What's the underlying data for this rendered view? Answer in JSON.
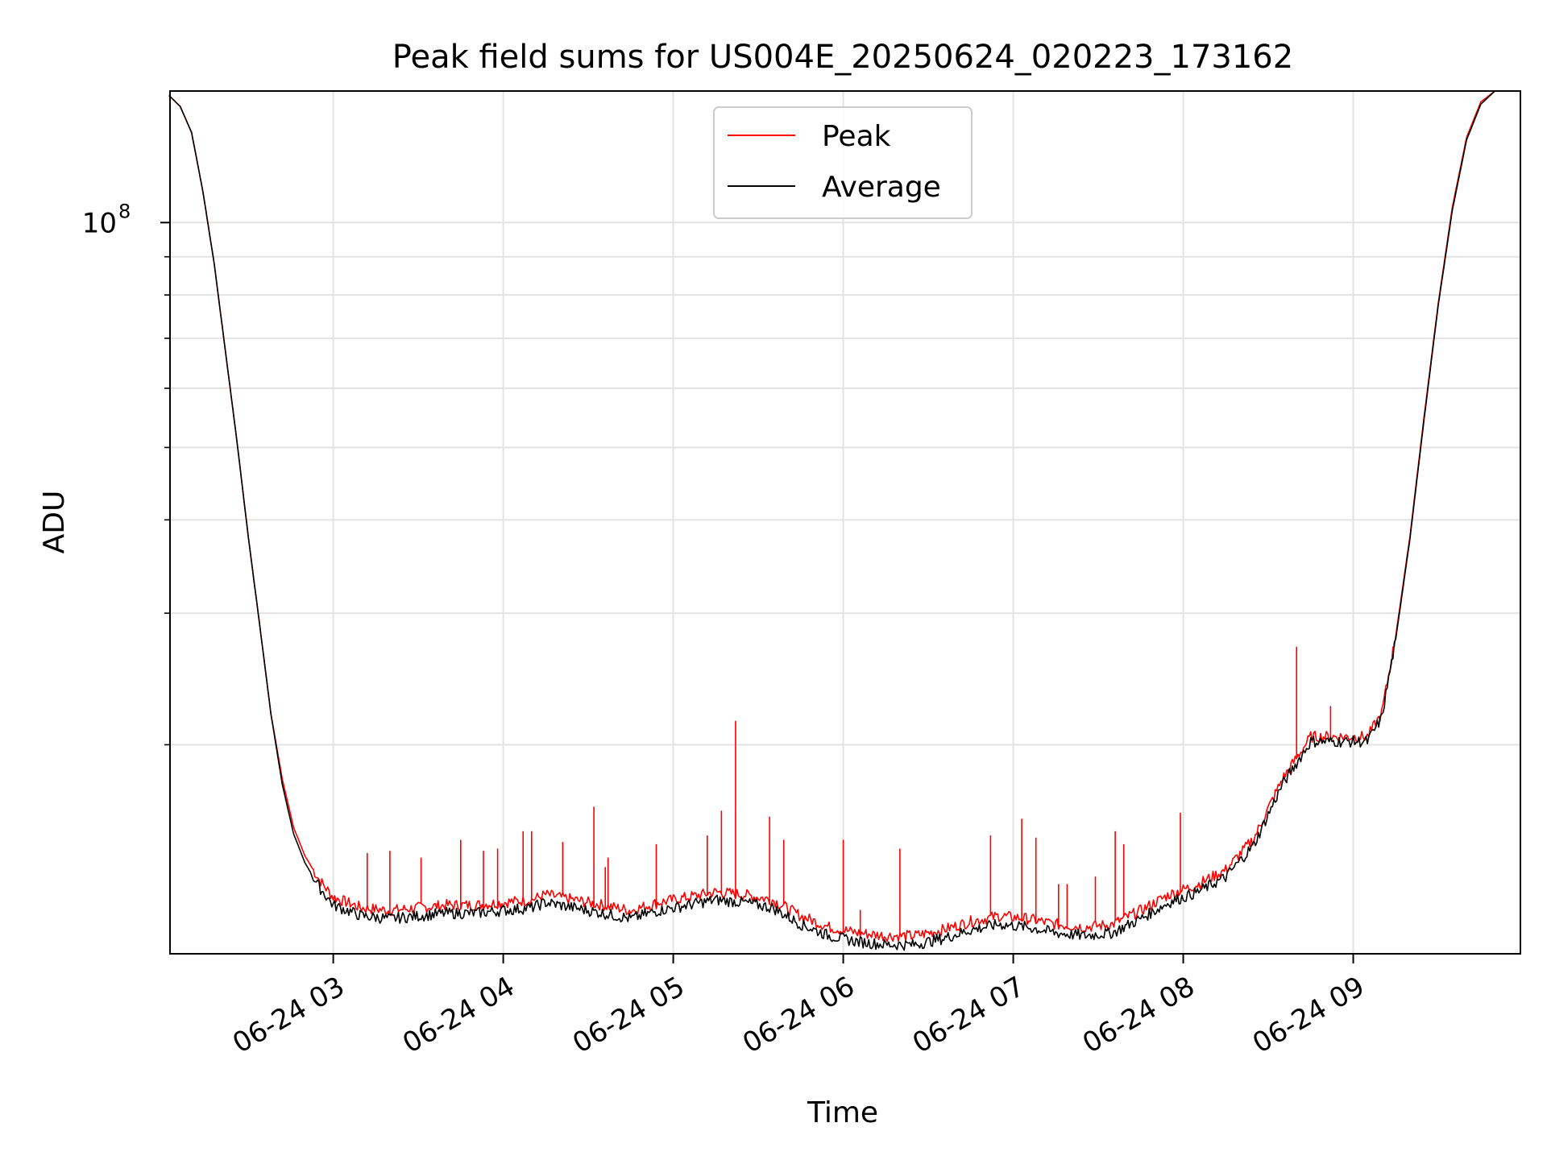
{
  "chart_data": {
    "type": "line",
    "title": "Peak field sums for US004E_20250624_020223_173162",
    "xlabel": "Time",
    "ylabel": "ADU",
    "y_scale": "log",
    "ylim": [
      10500000,
      150000000
    ],
    "x_unit": "datetime",
    "xlim": [
      "2025-06-24 02:02:23",
      "2025-06-24 09:59:00"
    ],
    "x_ticks": [
      {
        "at": "2025-06-24 03:00",
        "label": "06-24 03"
      },
      {
        "at": "2025-06-24 04:00",
        "label": "06-24 04"
      },
      {
        "at": "2025-06-24 05:00",
        "label": "06-24 05"
      },
      {
        "at": "2025-06-24 06:00",
        "label": "06-24 06"
      },
      {
        "at": "2025-06-24 07:00",
        "label": "06-24 07"
      },
      {
        "at": "2025-06-24 08:00",
        "label": "06-24 08"
      },
      {
        "at": "2025-06-24 09:00",
        "label": "06-24 09"
      }
    ],
    "y_major_ticks": [
      {
        "value": 100000000,
        "base": "10",
        "exponent": "8"
      }
    ],
    "y_minor_ticks": [
      20000000,
      30000000,
      40000000,
      50000000,
      60000000,
      70000000,
      80000000,
      90000000
    ],
    "grid": true,
    "legend_position": "upper-center",
    "series": [
      {
        "name": "Peak",
        "color": "#ff0000",
        "points": [
          [
            "2025-06-24 02:02",
            148000000
          ],
          [
            "2025-06-24 02:06",
            143000000
          ],
          [
            "2025-06-24 02:10",
            132000000
          ],
          [
            "2025-06-24 02:14",
            110000000
          ],
          [
            "2025-06-24 02:18",
            88000000
          ],
          [
            "2025-06-24 02:22",
            67000000
          ],
          [
            "2025-06-24 02:26",
            51000000
          ],
          [
            "2025-06-24 02:30",
            38000000
          ],
          [
            "2025-06-24 02:34",
            29000000
          ],
          [
            "2025-06-24 02:38",
            22000000
          ],
          [
            "2025-06-24 02:42",
            18000000
          ],
          [
            "2025-06-24 02:46",
            15500000
          ],
          [
            "2025-06-24 02:50",
            14200000
          ],
          [
            "2025-06-24 02:55",
            13200000
          ],
          [
            "2025-06-24 03:00",
            12500000
          ],
          [
            "2025-06-24 03:10",
            12100000
          ],
          [
            "2025-06-24 03:20",
            12000000
          ],
          [
            "2025-06-24 03:30",
            12100000
          ],
          [
            "2025-06-24 03:40",
            12200000
          ],
          [
            "2025-06-24 03:50",
            12200000
          ],
          [
            "2025-06-24 04:00",
            12300000
          ],
          [
            "2025-06-24 04:10",
            12400000
          ],
          [
            "2025-06-24 04:15",
            12600000
          ],
          [
            "2025-06-24 04:25",
            12400000
          ],
          [
            "2025-06-24 04:35",
            12200000
          ],
          [
            "2025-06-24 04:45",
            12000000
          ],
          [
            "2025-06-24 04:55",
            12300000
          ],
          [
            "2025-06-24 05:05",
            12500000
          ],
          [
            "2025-06-24 05:15",
            12700000
          ],
          [
            "2025-06-24 05:25",
            12600000
          ],
          [
            "2025-06-24 05:35",
            12400000
          ],
          [
            "2025-06-24 05:45",
            11800000
          ],
          [
            "2025-06-24 05:55",
            11400000
          ],
          [
            "2025-06-24 06:05",
            11200000
          ],
          [
            "2025-06-24 06:15",
            11100000
          ],
          [
            "2025-06-24 06:25",
            11100000
          ],
          [
            "2025-06-24 06:35",
            11300000
          ],
          [
            "2025-06-24 06:45",
            11600000
          ],
          [
            "2025-06-24 06:55",
            11800000
          ],
          [
            "2025-06-24 07:05",
            11700000
          ],
          [
            "2025-06-24 07:15",
            11500000
          ],
          [
            "2025-06-24 07:25",
            11400000
          ],
          [
            "2025-06-24 07:35",
            11500000
          ],
          [
            "2025-06-24 07:45",
            12000000
          ],
          [
            "2025-06-24 07:55",
            12600000
          ],
          [
            "2025-06-24 08:05",
            13000000
          ],
          [
            "2025-06-24 08:15",
            13600000
          ],
          [
            "2025-06-24 08:25",
            15000000
          ],
          [
            "2025-06-24 08:35",
            18000000
          ],
          [
            "2025-06-24 08:45",
            20500000
          ],
          [
            "2025-06-24 08:55",
            20500000
          ],
          [
            "2025-06-24 09:05",
            20500000
          ],
          [
            "2025-06-24 09:10",
            22000000
          ],
          [
            "2025-06-24 09:15",
            28000000
          ],
          [
            "2025-06-24 09:20",
            38000000
          ],
          [
            "2025-06-24 09:25",
            55000000
          ],
          [
            "2025-06-24 09:30",
            78000000
          ],
          [
            "2025-06-24 09:35",
            105000000
          ],
          [
            "2025-06-24 09:40",
            130000000
          ],
          [
            "2025-06-24 09:45",
            145000000
          ],
          [
            "2025-06-24 09:50",
            150000000
          ],
          [
            "2025-06-24 09:59",
            150000000
          ]
        ],
        "spikes": [
          [
            "2025-06-24 03:12",
            14300000
          ],
          [
            "2025-06-24 03:20",
            14400000
          ],
          [
            "2025-06-24 03:31",
            14100000
          ],
          [
            "2025-06-24 03:45",
            14900000
          ],
          [
            "2025-06-24 03:53",
            14400000
          ],
          [
            "2025-06-24 03:58",
            14500000
          ],
          [
            "2025-06-24 04:07",
            15300000
          ],
          [
            "2025-06-24 04:10",
            15300000
          ],
          [
            "2025-06-24 04:21",
            14800000
          ],
          [
            "2025-06-24 04:32",
            16500000
          ],
          [
            "2025-06-24 04:36",
            13700000
          ],
          [
            "2025-06-24 04:37",
            14100000
          ],
          [
            "2025-06-24 04:54",
            14700000
          ],
          [
            "2025-06-24 05:12",
            15100000
          ],
          [
            "2025-06-24 05:17",
            16300000
          ],
          [
            "2025-06-24 05:22",
            21500000
          ],
          [
            "2025-06-24 05:34",
            16000000
          ],
          [
            "2025-06-24 05:39",
            14900000
          ],
          [
            "2025-06-24 06:00",
            14900000
          ],
          [
            "2025-06-24 06:06",
            12000000
          ],
          [
            "2025-06-24 06:20",
            14500000
          ],
          [
            "2025-06-24 06:52",
            15100000
          ],
          [
            "2025-06-24 07:03",
            15900000
          ],
          [
            "2025-06-24 07:08",
            15000000
          ],
          [
            "2025-06-24 07:16",
            13000000
          ],
          [
            "2025-06-24 07:19",
            13000000
          ],
          [
            "2025-06-24 07:29",
            13300000
          ],
          [
            "2025-06-24 07:36",
            15300000
          ],
          [
            "2025-06-24 07:39",
            14700000
          ],
          [
            "2025-06-24 07:59",
            16200000
          ],
          [
            "2025-06-24 08:40",
            27000000
          ],
          [
            "2025-06-24 08:52",
            22500000
          ]
        ]
      },
      {
        "name": "Average",
        "color": "#000000",
        "points": [
          [
            "2025-06-24 02:02",
            148000000
          ],
          [
            "2025-06-24 02:06",
            143000000
          ],
          [
            "2025-06-24 02:10",
            132000000
          ],
          [
            "2025-06-24 02:14",
            110000000
          ],
          [
            "2025-06-24 02:18",
            88000000
          ],
          [
            "2025-06-24 02:22",
            67000000
          ],
          [
            "2025-06-24 02:26",
            51000000
          ],
          [
            "2025-06-24 02:30",
            38000000
          ],
          [
            "2025-06-24 02:34",
            29000000
          ],
          [
            "2025-06-24 02:38",
            22000000
          ],
          [
            "2025-06-24 02:42",
            17700000
          ],
          [
            "2025-06-24 02:46",
            15200000
          ],
          [
            "2025-06-24 02:50",
            13900000
          ],
          [
            "2025-06-24 02:55",
            12900000
          ],
          [
            "2025-06-24 03:00",
            12200000
          ],
          [
            "2025-06-24 03:10",
            11800000
          ],
          [
            "2025-06-24 03:20",
            11700000
          ],
          [
            "2025-06-24 03:30",
            11800000
          ],
          [
            "2025-06-24 03:40",
            11900000
          ],
          [
            "2025-06-24 03:50",
            11900000
          ],
          [
            "2025-06-24 04:00",
            12000000
          ],
          [
            "2025-06-24 04:10",
            12100000
          ],
          [
            "2025-06-24 04:15",
            12300000
          ],
          [
            "2025-06-24 04:25",
            12100000
          ],
          [
            "2025-06-24 04:35",
            11900000
          ],
          [
            "2025-06-24 04:45",
            11700000
          ],
          [
            "2025-06-24 04:55",
            12000000
          ],
          [
            "2025-06-24 05:05",
            12200000
          ],
          [
            "2025-06-24 05:15",
            12400000
          ],
          [
            "2025-06-24 05:25",
            12300000
          ],
          [
            "2025-06-24 05:35",
            12100000
          ],
          [
            "2025-06-24 05:45",
            11500000
          ],
          [
            "2025-06-24 05:55",
            11100000
          ],
          [
            "2025-06-24 06:05",
            10900000
          ],
          [
            "2025-06-24 06:15",
            10800000
          ],
          [
            "2025-06-24 06:25",
            10800000
          ],
          [
            "2025-06-24 06:35",
            11000000
          ],
          [
            "2025-06-24 06:45",
            11300000
          ],
          [
            "2025-06-24 06:55",
            11500000
          ],
          [
            "2025-06-24 07:05",
            11400000
          ],
          [
            "2025-06-24 07:15",
            11200000
          ],
          [
            "2025-06-24 07:25",
            11100000
          ],
          [
            "2025-06-24 07:35",
            11200000
          ],
          [
            "2025-06-24 07:45",
            11700000
          ],
          [
            "2025-06-24 07:55",
            12300000
          ],
          [
            "2025-06-24 08:05",
            12700000
          ],
          [
            "2025-06-24 08:15",
            13300000
          ],
          [
            "2025-06-24 08:25",
            14700000
          ],
          [
            "2025-06-24 08:35",
            17700000
          ],
          [
            "2025-06-24 08:45",
            20200000
          ],
          [
            "2025-06-24 08:55",
            20200000
          ],
          [
            "2025-06-24 09:05",
            20200000
          ],
          [
            "2025-06-24 09:10",
            21700000
          ],
          [
            "2025-06-24 09:15",
            27700000
          ],
          [
            "2025-06-24 09:20",
            37700000
          ],
          [
            "2025-06-24 09:25",
            54500000
          ],
          [
            "2025-06-24 09:30",
            77500000
          ],
          [
            "2025-06-24 09:35",
            104000000
          ],
          [
            "2025-06-24 09:40",
            129000000
          ],
          [
            "2025-06-24 09:45",
            144000000
          ],
          [
            "2025-06-24 09:50",
            150000000
          ],
          [
            "2025-06-24 09:59",
            150000000
          ]
        ]
      }
    ]
  }
}
